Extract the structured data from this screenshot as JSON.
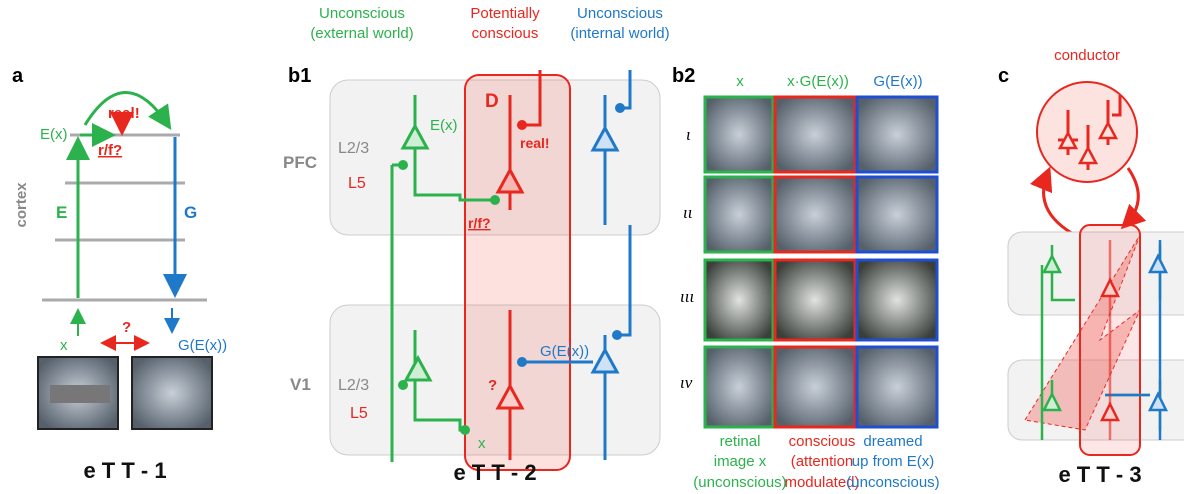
{
  "panel_a": {
    "label": "a",
    "axis_label": "cortex",
    "encoder_output": "E(x)",
    "real_label": "real!",
    "rf_label": "r/f?",
    "encoder": "E",
    "generator": "G",
    "input": "x",
    "question": "?",
    "generated": "G(E(x))",
    "caption": "e T T - 1"
  },
  "panel_b1": {
    "label": "b1",
    "headers": [
      {
        "lines": [
          "Unconscious",
          "(external world)"
        ]
      },
      {
        "lines": [
          "Potentially",
          "conscious"
        ]
      },
      {
        "lines": [
          "Unconscious",
          "(internal world)"
        ]
      }
    ],
    "pfc": {
      "area": "PFC",
      "layer_23": "L2/3",
      "layer_5": "L5",
      "encoder_output": "E(x)",
      "discriminator": "D",
      "real_label": "real!",
      "rf_label": "r/f?"
    },
    "v1": {
      "area": "V1",
      "layer_23": "L2/3",
      "layer_5": "L5",
      "question": "?",
      "input": "x",
      "generated": "G(E(x))"
    },
    "caption": "e T T - 2"
  },
  "panel_b2": {
    "label": "b2",
    "columns": [
      "x",
      "x·G(E(x))",
      "G(E(x))"
    ],
    "rows": [
      "ι",
      "ιι",
      "ιιι",
      "ιν"
    ],
    "footers": [
      {
        "lines": [
          "retinal",
          "image x",
          "(unconscious)"
        ]
      },
      {
        "lines": [
          "conscious",
          "(attention",
          "modulated)"
        ]
      },
      {
        "lines": [
          "dreamed",
          "up from E(x)",
          "(unconscious)"
        ]
      }
    ]
  },
  "panel_c": {
    "label": "c",
    "title": "conductor",
    "caption": "e T T - 3"
  }
}
